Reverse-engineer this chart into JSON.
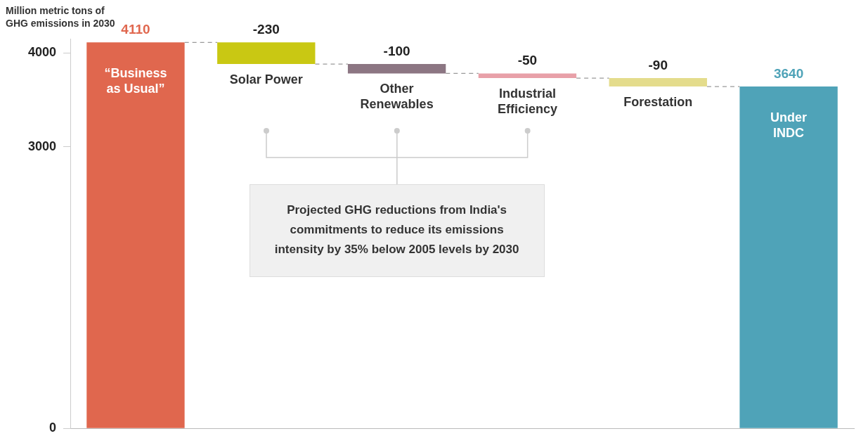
{
  "chart_data": {
    "type": "bar",
    "ylabel": "Million metric tons of GHG emissions in 2030",
    "categories": [
      "“Business as Usual”",
      "Solar Power",
      "Other Renewables",
      "Industrial Efficiency",
      "Forestation",
      "Under INDC"
    ],
    "values": [
      4110,
      -230,
      -100,
      -50,
      -90,
      3640
    ],
    "base": [
      0,
      4110,
      3880,
      3780,
      3730,
      0
    ],
    "colors": [
      "#e0674e",
      "#c9c813",
      "#8c7683",
      "#e8a0a8",
      "#e4dc8c",
      "#4fa3b8"
    ],
    "ylim": [
      0,
      4150
    ],
    "yticks": [
      0,
      3000,
      4000
    ],
    "data_labels": true,
    "grid": false,
    "legend": false,
    "tick_labels": "y",
    "annotations": [
      "Projected GHG reductions from India's commitments to reduce its emissions intensity by 35% below 2005 levels by 2030"
    ]
  }
}
